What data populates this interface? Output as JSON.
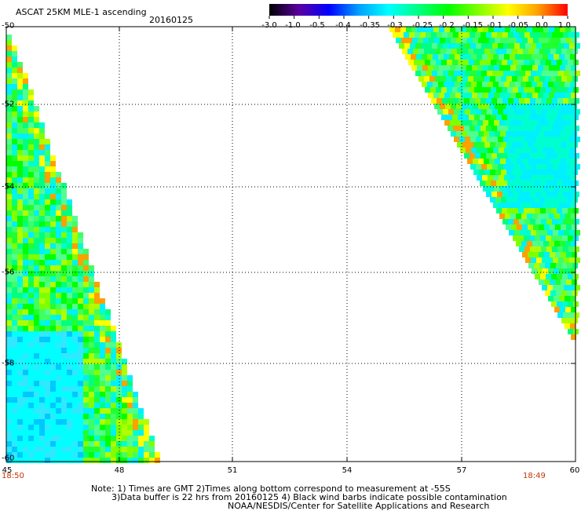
{
  "header": {
    "title": "ASCAT 25KM MLE-1 ascending",
    "date": "20160125"
  },
  "colorbar": {
    "labels": [
      "-3.0",
      "-1.0",
      "-0.5",
      "-0.4",
      "-0.35",
      "-0.3",
      "-0.25",
      "-0.2",
      "-0.15",
      "-0.1",
      "-0.05",
      "0.0",
      "1.0"
    ],
    "colors": [
      "#000000",
      "#5a00a0",
      "#0000ff",
      "#00a0ff",
      "#00ffff",
      "#00ff80",
      "#00ff00",
      "#80ff00",
      "#ffff00",
      "#ffa000",
      "#ff0000"
    ]
  },
  "map": {
    "x_ticks": [
      "45",
      "48",
      "51",
      "54",
      "57",
      "60"
    ],
    "y_ticks": [
      "-50",
      "-52",
      "-54",
      "-56",
      "-58",
      "-60"
    ],
    "time_left": "18:50",
    "time_right": "18:49"
  },
  "footer": {
    "note_line1": "Note: 1) Times are GMT 2)Times along bottom correspond to measurement at -55S",
    "note_line2": "3)Data buffer is 22 hrs from 20160125 4) Black wind barbs indicate possible contamination",
    "credit": "NOAA/NESDIS/Center for Satellite Applications and Research"
  }
}
